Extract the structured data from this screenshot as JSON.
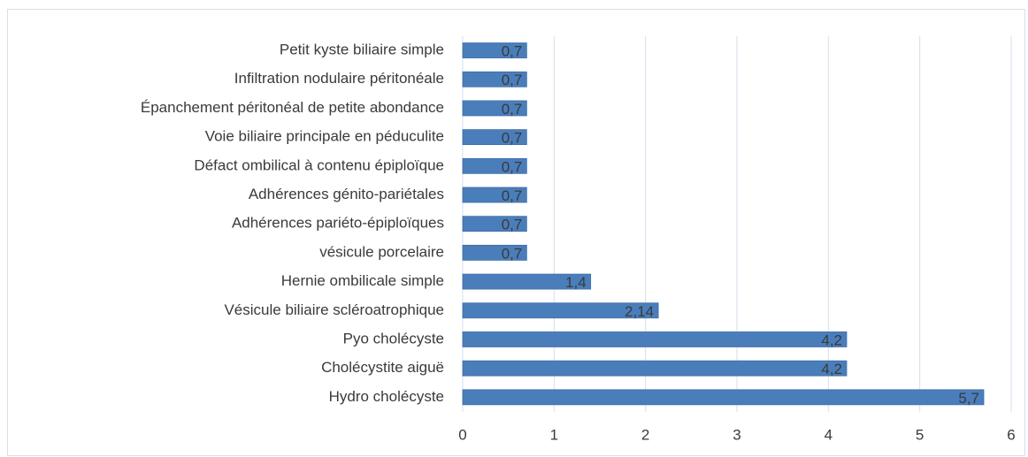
{
  "chart_data": {
    "type": "bar",
    "orientation": "horizontal",
    "categories": [
      "Petit kyste biliaire simple",
      "Infiltration nodulaire péritonéale",
      "Épanchement péritonéal de petite abondance",
      "Voie biliaire principale en péduculite",
      "Défact ombilical à contenu épiploïque",
      "Adhérences génito-pariétales",
      "Adhérences pariéto-épiploïques",
      "vésicule porcelaire",
      "Hernie ombilicale simple",
      "Vésicule biliaire scléroatrophique",
      "Pyo cholécyste",
      "Cholécystite aiguë",
      "Hydro cholécyste"
    ],
    "values": [
      0.7,
      0.7,
      0.7,
      0.7,
      0.7,
      0.7,
      0.7,
      0.7,
      1.4,
      2.14,
      4.2,
      4.2,
      5.7
    ],
    "value_labels": [
      "0,7",
      "0,7",
      "0,7",
      "0,7",
      "0,7",
      "0,7",
      "0,7",
      "0,7",
      "1,4",
      "2,14",
      "4,2",
      "4,2",
      "5,7"
    ],
    "color": "#4a7ebb",
    "xlim": [
      0,
      6
    ],
    "xticks": [
      0,
      1,
      2,
      3,
      4,
      5,
      6
    ],
    "grid": true
  }
}
